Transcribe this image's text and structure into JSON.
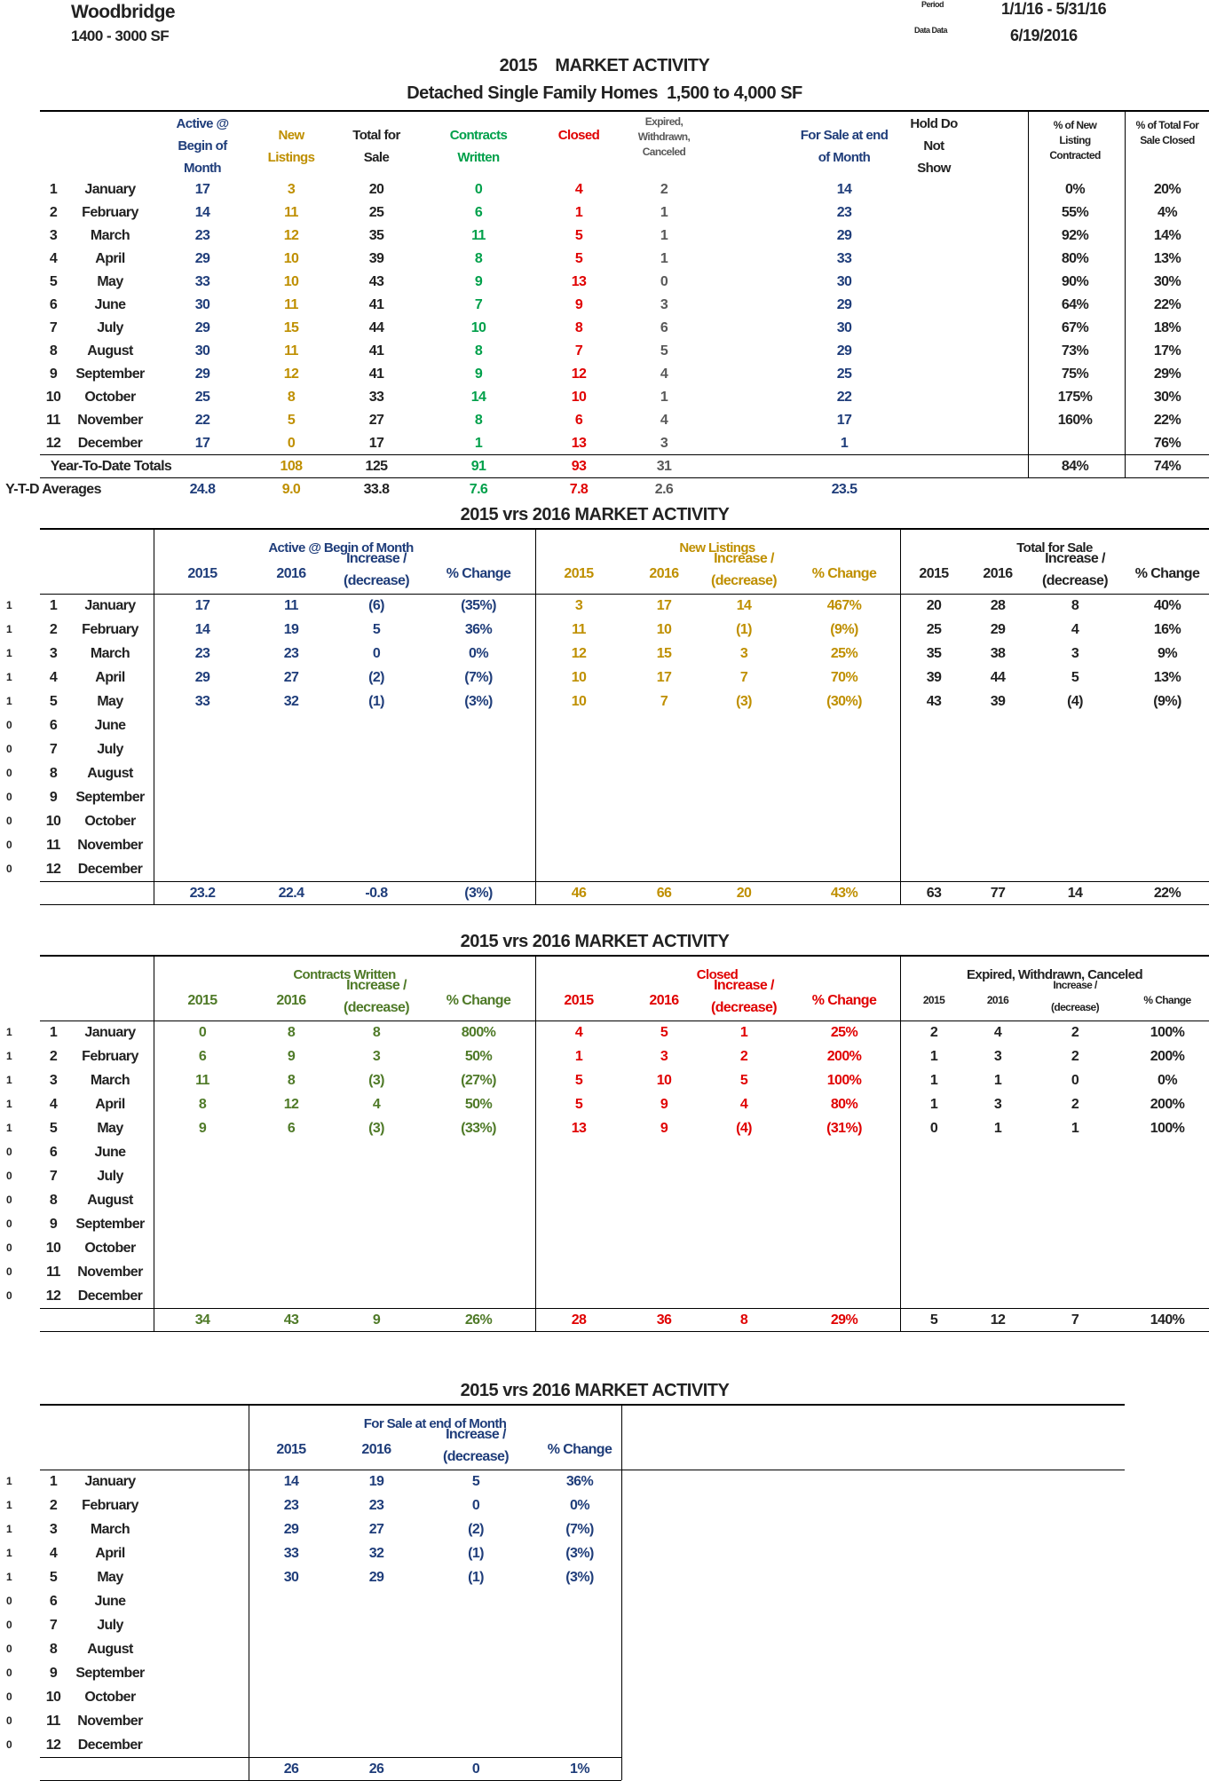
{
  "header": {
    "city": "Woodbridge",
    "size_range": "1400 - 3000 SF",
    "period_label": "Period",
    "period": "1/1/16 - 5/31/16",
    "data_date_label": "Data Data",
    "data_date": "6/19/2016"
  },
  "colors": {
    "blue": "#1f3d7a",
    "gold": "#bf8f00",
    "green": "#00a04a",
    "olive": "#4f7a28",
    "red": "#e00000",
    "gray": "#595959"
  },
  "t1": {
    "title": "2015    MARKET ACTIVITY",
    "subtitle": "Detached Single Family Homes  1,500 to 4,000 SF",
    "headers": [
      "",
      "",
      "Active @\nBegin of\nMonth",
      "New\nListings",
      "Total for\nSale",
      "Contracts\nWritten",
      "Closed",
      "Expired,\nWithdrawn,\nCanceled",
      "For Sale at end\nof Month",
      "Hold Do\nNot\nShow",
      "% of New\nListing\nContracted",
      "% of Total For\nSale Closed"
    ],
    "rows": [
      [
        "1",
        "January",
        "17",
        "3",
        "20",
        "0",
        "4",
        "2",
        "14",
        "",
        "0%",
        "20%"
      ],
      [
        "2",
        "February",
        "14",
        "11",
        "25",
        "6",
        "1",
        "1",
        "23",
        "",
        "55%",
        "4%"
      ],
      [
        "3",
        "March",
        "23",
        "12",
        "35",
        "11",
        "5",
        "1",
        "29",
        "",
        "92%",
        "14%"
      ],
      [
        "4",
        "April",
        "29",
        "10",
        "39",
        "8",
        "5",
        "1",
        "33",
        "",
        "80%",
        "13%"
      ],
      [
        "5",
        "May",
        "33",
        "10",
        "43",
        "9",
        "13",
        "0",
        "30",
        "",
        "90%",
        "30%"
      ],
      [
        "6",
        "June",
        "30",
        "11",
        "41",
        "7",
        "9",
        "3",
        "29",
        "",
        "64%",
        "22%"
      ],
      [
        "7",
        "July",
        "29",
        "15",
        "44",
        "10",
        "8",
        "6",
        "30",
        "",
        "67%",
        "18%"
      ],
      [
        "8",
        "August",
        "30",
        "11",
        "41",
        "8",
        "7",
        "5",
        "29",
        "",
        "73%",
        "17%"
      ],
      [
        "9",
        "September",
        "29",
        "12",
        "41",
        "9",
        "12",
        "4",
        "25",
        "",
        "75%",
        "29%"
      ],
      [
        "10",
        "October",
        "25",
        "8",
        "33",
        "14",
        "10",
        "1",
        "22",
        "",
        "175%",
        "30%"
      ],
      [
        "11",
        "November",
        "22",
        "5",
        "27",
        "8",
        "6",
        "4",
        "17",
        "",
        "160%",
        "22%"
      ],
      [
        "12",
        "December",
        "17",
        "0",
        "17",
        "1",
        "13",
        "3",
        "1",
        "",
        "",
        "76%"
      ]
    ],
    "totals_label": "Year-To-Date Totals",
    "totals": [
      "108",
      "125",
      "91",
      "93",
      "31",
      "",
      "",
      "84%",
      "74%"
    ],
    "averages_label": "Y-T-D Averages",
    "averages": [
      "24.8",
      "9.0",
      "33.8",
      "7.6",
      "7.8",
      "2.6",
      "23.5"
    ]
  },
  "months": [
    [
      "1",
      "1",
      "January"
    ],
    [
      "1",
      "2",
      "February"
    ],
    [
      "1",
      "3",
      "March"
    ],
    [
      "1",
      "4",
      "April"
    ],
    [
      "1",
      "5",
      "May"
    ],
    [
      "0",
      "6",
      "June"
    ],
    [
      "0",
      "7",
      "July"
    ],
    [
      "0",
      "8",
      "August"
    ],
    [
      "0",
      "9",
      "September"
    ],
    [
      "0",
      "10",
      "October"
    ],
    [
      "0",
      "11",
      "November"
    ],
    [
      "0",
      "12",
      "December"
    ]
  ],
  "sub_headers": [
    "2015",
    "2016",
    "Increase /\n(decrease)",
    "% Change"
  ],
  "t2": {
    "title": "2015  vrs  2016  MARKET ACTIVITY",
    "groups": [
      "Active @ Begin of Month",
      "New Listings",
      "Total for Sale"
    ],
    "rows": [
      [
        "17",
        "11",
        "(6)",
        "(35%)",
        "3",
        "17",
        "14",
        "467%",
        "20",
        "28",
        "8",
        "40%"
      ],
      [
        "14",
        "19",
        "5",
        "36%",
        "11",
        "10",
        "(1)",
        "(9%)",
        "25",
        "29",
        "4",
        "16%"
      ],
      [
        "23",
        "23",
        "0",
        "0%",
        "12",
        "15",
        "3",
        "25%",
        "35",
        "38",
        "3",
        "9%"
      ],
      [
        "29",
        "27",
        "(2)",
        "(7%)",
        "10",
        "17",
        "7",
        "70%",
        "39",
        "44",
        "5",
        "13%"
      ],
      [
        "33",
        "32",
        "(1)",
        "(3%)",
        "10",
        "7",
        "(3)",
        "(30%)",
        "43",
        "39",
        "(4)",
        "(9%)"
      ]
    ],
    "totals": [
      "23.2",
      "22.4",
      "-0.8",
      "(3%)",
      "46",
      "66",
      "20",
      "43%",
      "63",
      "77",
      "14",
      "22%"
    ]
  },
  "t3": {
    "title": "2015  vrs  2016  MARKET ACTIVITY",
    "groups": [
      "Contracts Written",
      "Closed",
      "Expired, Withdrawn, Canceled"
    ],
    "rows": [
      [
        "0",
        "8",
        "8",
        "800%",
        "4",
        "5",
        "1",
        "25%",
        "2",
        "4",
        "2",
        "100%"
      ],
      [
        "6",
        "9",
        "3",
        "50%",
        "1",
        "3",
        "2",
        "200%",
        "1",
        "3",
        "2",
        "200%"
      ],
      [
        "11",
        "8",
        "(3)",
        "(27%)",
        "5",
        "10",
        "5",
        "100%",
        "1",
        "1",
        "0",
        "0%"
      ],
      [
        "8",
        "12",
        "4",
        "50%",
        "5",
        "9",
        "4",
        "80%",
        "1",
        "3",
        "2",
        "200%"
      ],
      [
        "9",
        "6",
        "(3)",
        "(33%)",
        "13",
        "9",
        "(4)",
        "(31%)",
        "0",
        "1",
        "1",
        "100%"
      ]
    ],
    "totals": [
      "34",
      "43",
      "9",
      "26%",
      "28",
      "36",
      "8",
      "29%",
      "5",
      "12",
      "7",
      "140%"
    ]
  },
  "t4": {
    "title": "2015  vrs  2016  MARKET ACTIVITY",
    "groups": [
      "For Sale at end of Month"
    ],
    "rows": [
      [
        "14",
        "19",
        "5",
        "36%"
      ],
      [
        "23",
        "23",
        "0",
        "0%"
      ],
      [
        "29",
        "27",
        "(2)",
        "(7%)"
      ],
      [
        "33",
        "32",
        "(1)",
        "(3%)"
      ],
      [
        "30",
        "29",
        "(1)",
        "(3%)"
      ]
    ],
    "totals": [
      "26",
      "26",
      "0",
      "1%"
    ]
  }
}
